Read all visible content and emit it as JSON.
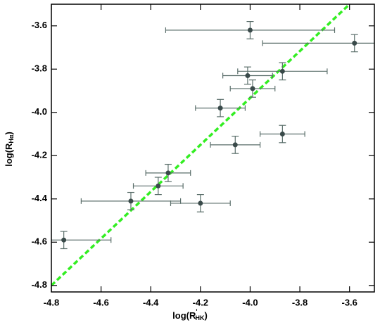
{
  "chart_data": {
    "type": "scatter",
    "xlabel": {
      "base": "log(R",
      "sup": "'",
      "sub": "HK",
      "close": ")"
    },
    "ylabel": {
      "base": "log(R",
      "sub": "Hα",
      "close": ")"
    },
    "xlim": [
      -4.8,
      -3.5
    ],
    "ylim": [
      -4.83,
      -3.5
    ],
    "xticks": [
      {
        "value": -4.8,
        "label": "-4.8"
      },
      {
        "value": -4.6,
        "label": "-4.6"
      },
      {
        "value": -4.4,
        "label": "-4.4"
      },
      {
        "value": -4.2,
        "label": "-4.2"
      },
      {
        "value": -4.0,
        "label": "-4.0"
      },
      {
        "value": -3.8,
        "label": "-3.8"
      },
      {
        "value": -3.6,
        "label": "-3.6"
      }
    ],
    "yticks": [
      {
        "value": -4.8,
        "label": "-4.8"
      },
      {
        "value": -4.6,
        "label": "-4.6"
      },
      {
        "value": -4.4,
        "label": "-4.4"
      },
      {
        "value": -4.2,
        "label": "-4.2"
      },
      {
        "value": -4.0,
        "label": "-4.0"
      },
      {
        "value": -3.8,
        "label": "-3.8"
      },
      {
        "value": -3.6,
        "label": "-3.6"
      }
    ],
    "series": [
      {
        "color": "#3a4a4a",
        "errorbar_color": "#5a6e6a",
        "x": [
          -4.75,
          -4.48,
          -4.37,
          -4.33,
          -4.2,
          -4.12,
          -4.06,
          -4.0,
          -4.01,
          -3.99,
          -3.87,
          -3.87,
          -3.58
        ],
        "y": [
          -4.59,
          -4.41,
          -4.34,
          -4.28,
          -4.42,
          -3.98,
          -4.15,
          -3.62,
          -3.83,
          -3.89,
          -3.81,
          -4.1,
          -3.68
        ],
        "xerr": [
          0.19,
          0.2,
          0.1,
          0.09,
          0.12,
          0.1,
          0.1,
          0.34,
          0.1,
          0.09,
          0.18,
          0.09,
          0.37
        ],
        "yerr": [
          0.04,
          0.04,
          0.04,
          0.04,
          0.04,
          0.04,
          0.04,
          0.04,
          0.04,
          0.04,
          0.04,
          0.04,
          0.04
        ]
      }
    ],
    "fit_line": {
      "color": "#33ee22",
      "x": [
        -4.8,
        -3.6
      ],
      "y": [
        -4.8,
        -3.5
      ]
    }
  }
}
